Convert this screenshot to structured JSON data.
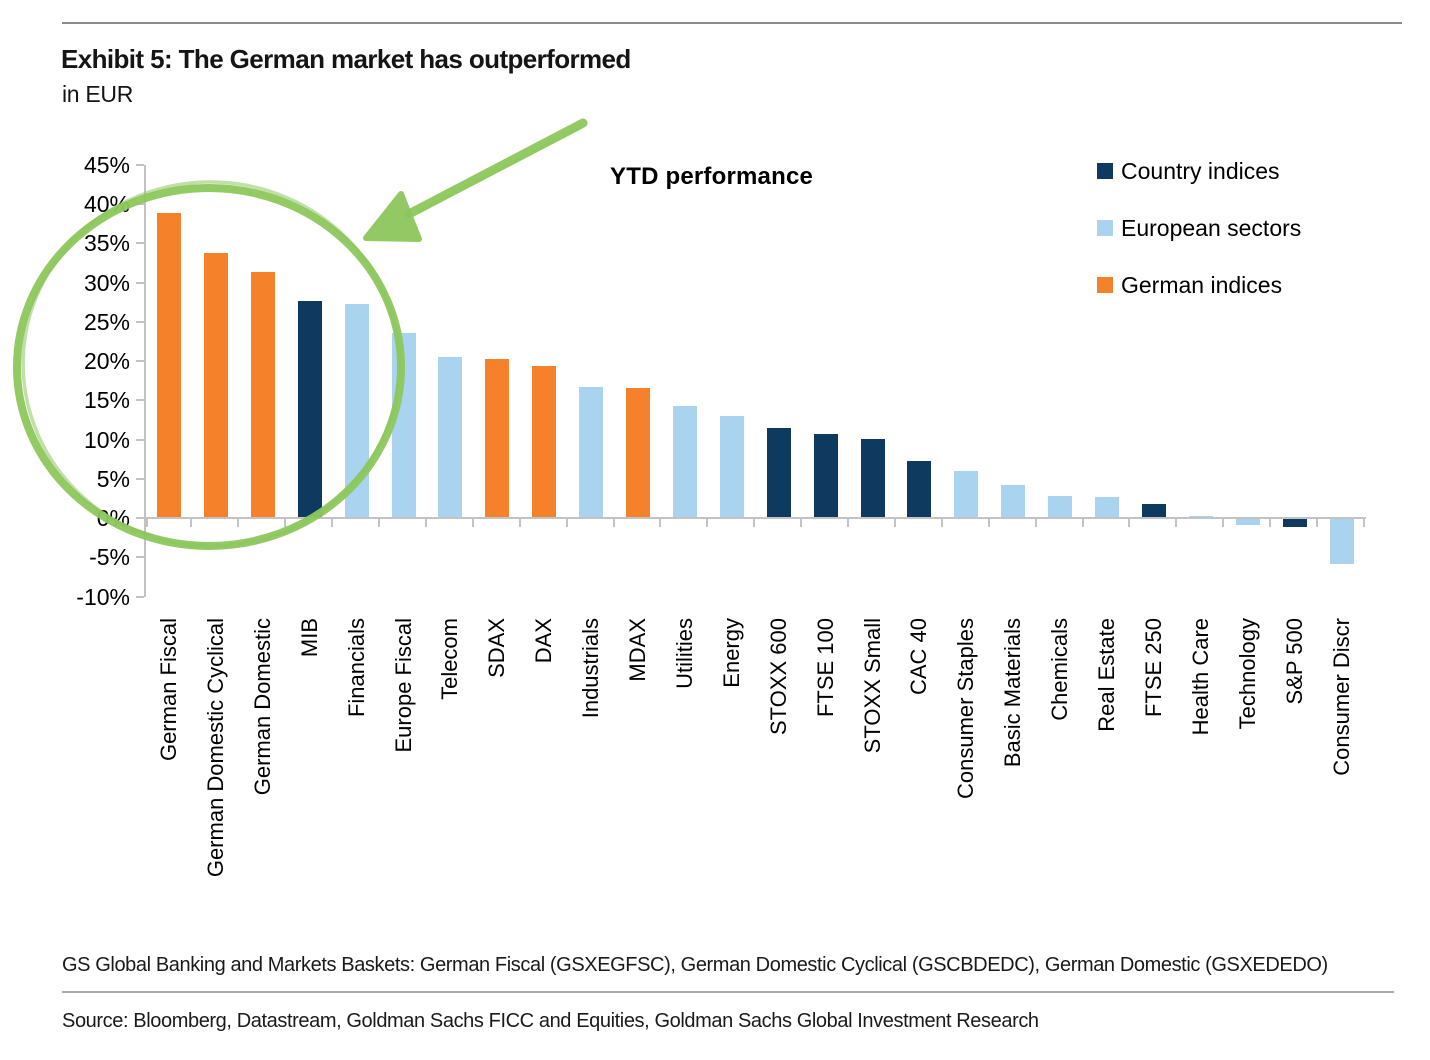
{
  "header": {
    "exhibit_title": "Exhibit 5: The German market has outperformed",
    "exhibit_subtitle": "in EUR"
  },
  "chart_data": {
    "type": "bar",
    "title": "YTD performance",
    "ylim": [
      -10,
      45
    ],
    "ytick_step": 5,
    "ytick_suffix": "%",
    "grid": false,
    "legend_position": "top-right",
    "categories": [
      "German Fiscal",
      "German Domestic Cyclical",
      "German Domestic",
      "MIB",
      "Financials",
      "Europe Fiscal",
      "Telecom",
      "SDAX",
      "DAX",
      "Industrials",
      "MDAX",
      "Utilities",
      "Energy",
      "STOXX 600",
      "FTSE 100",
      "STOXX Small",
      "CAC 40",
      "Consumer Staples",
      "Basic Materials",
      "Chemicals",
      "Real Estate",
      "FTSE 250",
      "Health Care",
      "Technology",
      "S&P 500",
      "Consumer Discr"
    ],
    "values": [
      38.9,
      33.8,
      31.4,
      27.7,
      27.3,
      23.6,
      20.5,
      20.2,
      19.4,
      16.7,
      16.5,
      14.3,
      13.0,
      11.5,
      10.7,
      10.1,
      7.3,
      6.0,
      4.2,
      2.8,
      2.7,
      1.8,
      0.2,
      -0.8,
      -1.0,
      -5.7
    ],
    "groups": [
      "german",
      "german",
      "german",
      "country",
      "sector",
      "sector",
      "sector",
      "german",
      "german",
      "sector",
      "german",
      "sector",
      "sector",
      "country",
      "country",
      "country",
      "country",
      "sector",
      "sector",
      "sector",
      "sector",
      "country",
      "sector",
      "sector",
      "country",
      "sector"
    ],
    "legend": [
      {
        "label": "Country indices",
        "key": "country"
      },
      {
        "label": "European sectors",
        "key": "sector"
      },
      {
        "label": "German indices",
        "key": "german"
      }
    ],
    "colors": {
      "country": "#0e3a5f",
      "sector": "#aad3ef",
      "german": "#f5822a",
      "axis": "#c3c3c3",
      "annotation_green": "#8dc75c"
    },
    "annotation": {
      "shape": "hand-drawn ellipse with arrow",
      "circled_categories": [
        "German Fiscal",
        "German Domestic Cyclical",
        "German Domestic",
        "MIB"
      ]
    }
  },
  "footnotes": {
    "baskets_note": "GS Global Banking and Markets Baskets: German Fiscal (GSXEGFSC), German Domestic Cyclical (GSCBDEDC), German Domestic (GSXEDEDO)",
    "source_note": "Source: Bloomberg, Datastream, Goldman Sachs FICC and Equities, Goldman Sachs Global Investment Research"
  }
}
